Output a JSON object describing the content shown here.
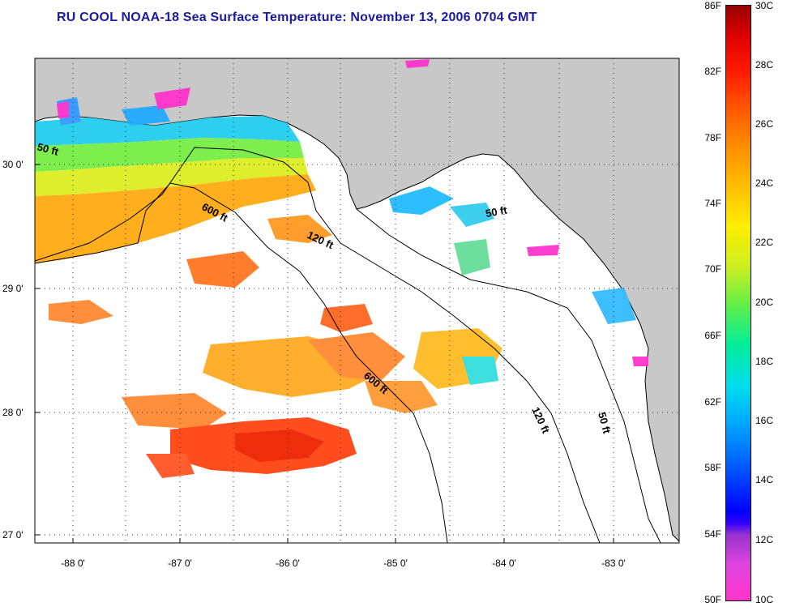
{
  "title": "RU COOL  NOAA-18  Sea Surface Temperature:  November 13, 2006 0704 GMT",
  "axes": {
    "lat_labels": [
      "30 0'",
      "29 0'",
      "28 0'",
      "27 0'"
    ],
    "lon_labels": [
      "-88 0'",
      "-87 0'",
      "-86 0'",
      "-85 0'",
      "-84 0'",
      "-83 0'"
    ]
  },
  "contours": {
    "labels": [
      {
        "name": "50ft-west",
        "text": "50 ft"
      },
      {
        "name": "600ft-north",
        "text": "600 ft"
      },
      {
        "name": "120ft-north",
        "text": "120 ft"
      },
      {
        "name": "50ft-east",
        "text": "50 ft"
      },
      {
        "name": "600ft-south",
        "text": "600 ft"
      },
      {
        "name": "120ft-south",
        "text": "120 ft"
      },
      {
        "name": "50ft-south",
        "text": "50 ft"
      }
    ]
  },
  "colorbar": {
    "fahrenheit": [
      "86F",
      "82F",
      "78F",
      "74F",
      "70F",
      "66F",
      "62F",
      "58F",
      "54F",
      "50F"
    ],
    "celsius": [
      "30C",
      "28C",
      "26C",
      "24C",
      "22C",
      "20C",
      "18C",
      "16C",
      "14C",
      "12C",
      "10C"
    ]
  },
  "colors": {
    "land": "#c8c8c8",
    "water_no_data": "#ffffff",
    "title": "#1a1aa0"
  }
}
